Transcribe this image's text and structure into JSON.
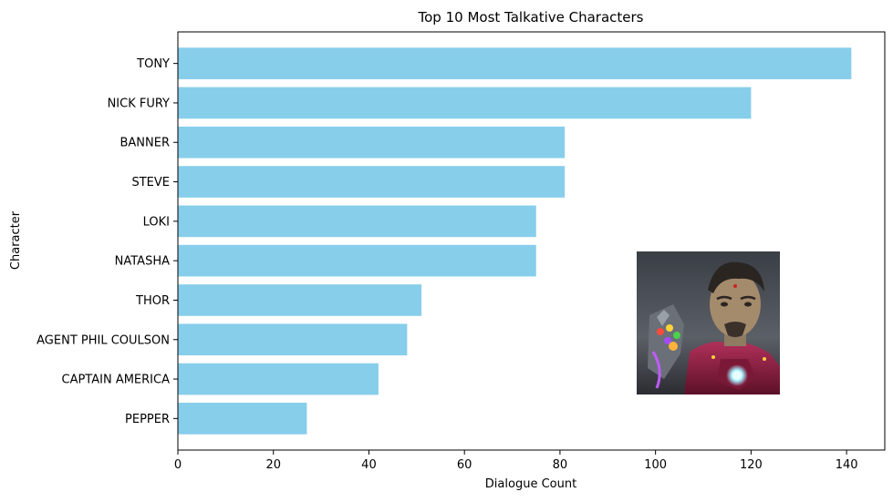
{
  "chart_data": {
    "type": "bar",
    "orientation": "horizontal",
    "title": "Top 10 Most Talkative Characters",
    "xlabel": "Dialogue Count",
    "ylabel": "Character",
    "categories": [
      "TONY",
      "NICK FURY",
      "BANNER",
      "STEVE",
      "LOKI",
      "NATASHA",
      "THOR",
      "AGENT PHIL COULSON",
      "CAPTAIN AMERICA",
      "PEPPER"
    ],
    "values": [
      141,
      120,
      81,
      81,
      75,
      75,
      51,
      48,
      42,
      27
    ],
    "xlim": [
      0,
      148
    ],
    "xticks": [
      0,
      20,
      40,
      60,
      80,
      100,
      120,
      140
    ],
    "bar_color": "#87ceeb",
    "grid": false,
    "inset_image": "iron-man-infinity-gauntlet-portrait"
  }
}
